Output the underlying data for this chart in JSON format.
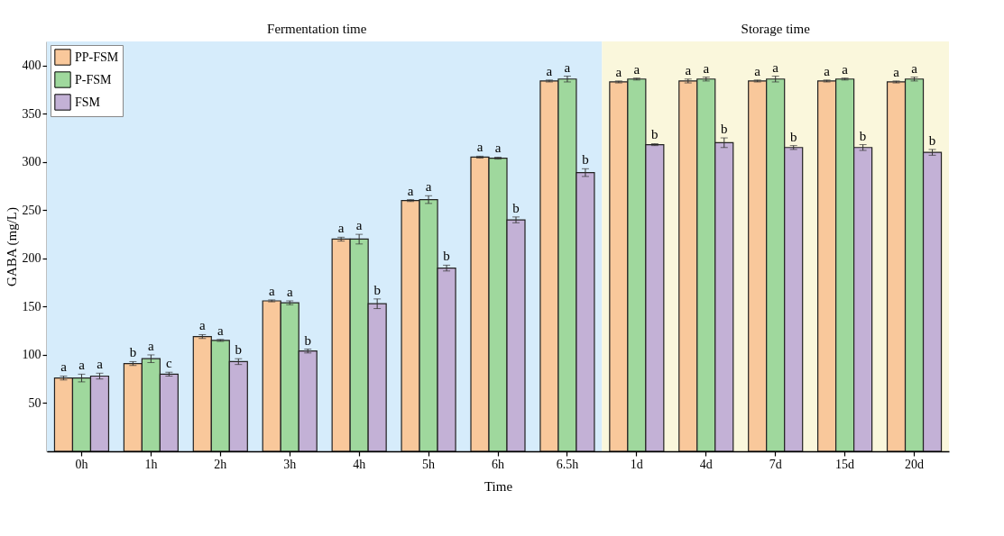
{
  "chart_data": {
    "type": "bar",
    "xlabel": "Time",
    "ylabel": "GABA (mg/L)",
    "categories": [
      "0h",
      "1h",
      "2h",
      "3h",
      "4h",
      "5h",
      "6h",
      "6.5h",
      "1d",
      "4d",
      "7d",
      "15d",
      "20d"
    ],
    "series": [
      {
        "name": "PP-FSM",
        "color": "#f9c89b",
        "values": [
          76,
          91,
          119,
          156,
          220,
          260,
          305,
          384,
          383,
          384,
          384,
          384,
          383
        ],
        "errors": [
          2,
          2,
          2,
          1,
          2,
          1,
          1,
          1,
          1,
          2,
          1,
          1,
          1
        ],
        "value_labels": [
          "a",
          "b",
          "a",
          "a",
          "a",
          "a",
          "a",
          "a",
          "a",
          "a",
          "a",
          "a",
          "a"
        ]
      },
      {
        "name": "P-FSM",
        "color": "#9fd89d",
        "values": [
          76,
          96,
          115,
          154,
          220,
          261,
          304,
          386,
          386,
          386,
          386,
          386,
          386
        ],
        "errors": [
          4,
          4,
          1,
          2,
          5,
          4,
          1,
          3,
          1,
          2,
          3,
          1,
          2
        ],
        "value_labels": [
          "a",
          "a",
          "a",
          "a",
          "a",
          "a",
          "a",
          "a",
          "a",
          "a",
          "a",
          "a",
          "a"
        ]
      },
      {
        "name": "FSM",
        "color": "#c3b1d6",
        "values": [
          78,
          80,
          93,
          104,
          153,
          190,
          240,
          289,
          318,
          320,
          315,
          315,
          310
        ],
        "errors": [
          3,
          2,
          3,
          2,
          5,
          3,
          3,
          4,
          1,
          5,
          2,
          3,
          3
        ],
        "value_labels": [
          "a",
          "c",
          "b",
          "b",
          "b",
          "b",
          "b",
          "b",
          "b",
          "b",
          "b",
          "b",
          "b"
        ]
      }
    ],
    "ylim": [
      0,
      425
    ],
    "yticks": [
      50,
      100,
      150,
      200,
      250,
      300,
      350,
      400
    ],
    "bands": [
      {
        "axis": "x",
        "from": "0h",
        "to": "6.5h",
        "label": "Fermentation time",
        "color": "#d6ecfb"
      },
      {
        "axis": "x",
        "from": "1d",
        "to": "20d",
        "label": "Storage time",
        "color": "#faf7dc"
      }
    ],
    "legend": "top left",
    "grid": false
  }
}
